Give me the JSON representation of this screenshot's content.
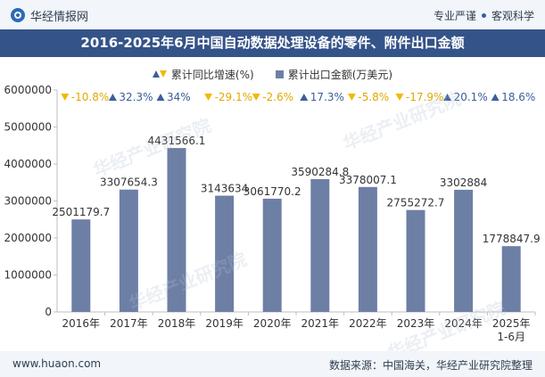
{
  "header": {
    "brand": "华经情报网",
    "tags": [
      "专业严谨",
      "客观科学"
    ]
  },
  "title": "2016-2025年6月中国自动数据处理设备的零件、附件出口金额",
  "legend": {
    "growth": "累计同比增速(%)",
    "amount": "累计出口金额(万美元)"
  },
  "colors": {
    "bar": "#6e7fa6",
    "up": "#3a5f9a",
    "down": "#f2b900",
    "title_bg": "#345389"
  },
  "chart_data": {
    "type": "bar",
    "categories": [
      "2016年",
      "2017年",
      "2018年",
      "2019年",
      "2020年",
      "2021年",
      "2022年",
      "2023年",
      "2024年",
      "2025年\n1-6月"
    ],
    "series": [
      {
        "name": "累计出口金额(万美元)",
        "values": [
          2501179.7,
          3307654.3,
          4431566.1,
          3143634,
          3061770.2,
          3590284.8,
          3378007.1,
          2755272.7,
          3302884,
          1778847.9
        ],
        "labels": [
          "2501179.7",
          "3307654.3",
          "4431566.1",
          "3143634",
          "3061770.2",
          "3590284.8",
          "3378007.1",
          "2755272.7",
          "3302884",
          "1778847.9"
        ]
      },
      {
        "name": "累计同比增速(%)",
        "values": [
          -10.8,
          32.3,
          34,
          -29.1,
          -2.6,
          17.3,
          -5.8,
          -17.9,
          20.1,
          18.6
        ],
        "labels": [
          "-10.8%",
          "32.3%",
          "34%",
          "-29.1%",
          "-2.6%",
          "17.3%",
          "-5.8%",
          "-17.9%",
          "20.1%",
          "18.6%"
        ]
      }
    ],
    "yticks": [
      "0",
      "1000000",
      "2000000",
      "3000000",
      "4000000",
      "5000000",
      "6000000"
    ],
    "ylim": [
      0,
      6000000
    ],
    "grid": false,
    "legend_position": "top"
  },
  "footer": {
    "website": "www.huaon.com",
    "source": "数据来源：中国海关，华经产业研究院整理"
  }
}
